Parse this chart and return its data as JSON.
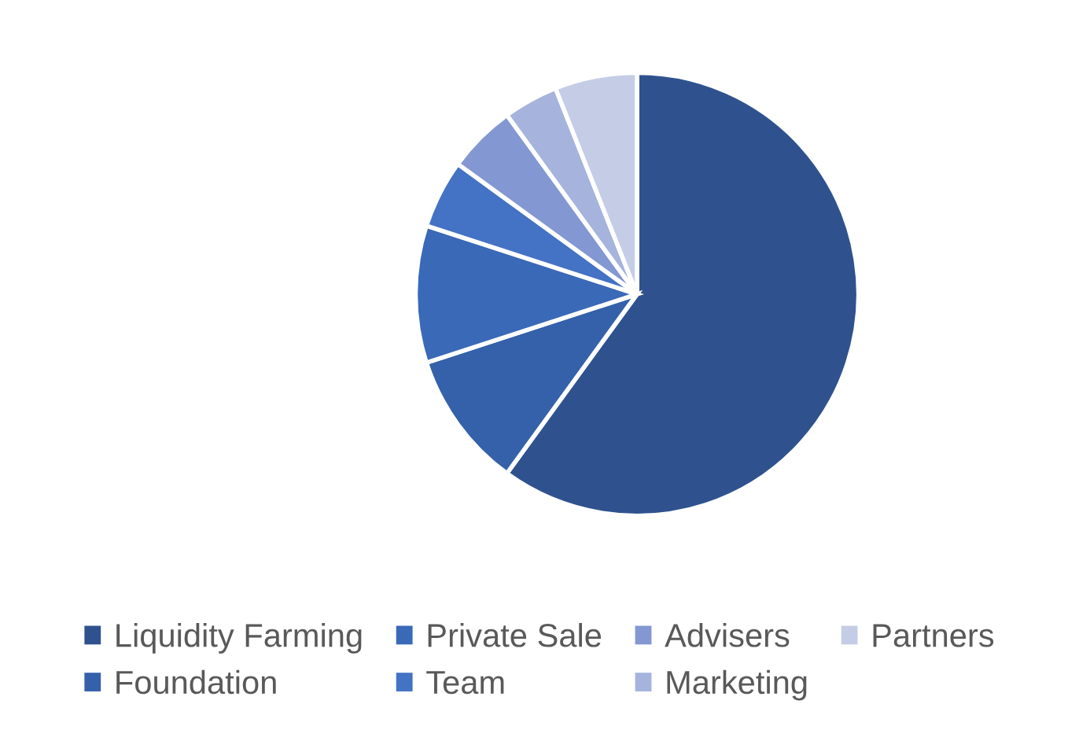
{
  "chart_data": {
    "type": "pie",
    "categories": [
      "Liquidity Farming",
      "Foundation",
      "Private Sale",
      "Team",
      "Advisers",
      "Marketing",
      "Partners"
    ],
    "values": [
      60,
      10,
      10,
      5,
      5,
      4,
      6
    ],
    "colors": [
      "#2f528f",
      "#3461a9",
      "#3a69b8",
      "#4472c4",
      "#8397d2",
      "#a6b3dc",
      "#c5cde6"
    ],
    "legend": "bottom"
  }
}
